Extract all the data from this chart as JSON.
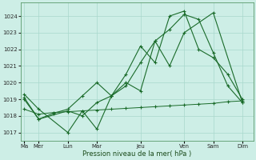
{
  "background_color": "#cdeee6",
  "grid_color": "#a8d8cc",
  "line_color": "#1a6b2a",
  "xlabel": "Pression niveau de la mer( hPa )",
  "ylim": [
    1016.5,
    1024.8
  ],
  "yticks": [
    1017,
    1018,
    1019,
    1020,
    1021,
    1022,
    1023,
    1024
  ],
  "x_labels": [
    "Ma",
    "Mer",
    "Lun",
    "Mar",
    "Jeu",
    "Ven",
    "Sam",
    "Dim"
  ],
  "x_positions": [
    0,
    2,
    6,
    10,
    16,
    22,
    26,
    30
  ],
  "xlim": [
    -0.5,
    31.5
  ],
  "series1": {
    "x": [
      0,
      2,
      4,
      6,
      8,
      10,
      12,
      14,
      16,
      18,
      20,
      22,
      24,
      26,
      28,
      30
    ],
    "y": [
      1018.4,
      1018.1,
      1018.2,
      1018.25,
      1018.3,
      1018.35,
      1018.4,
      1018.45,
      1018.5,
      1018.55,
      1018.6,
      1018.65,
      1018.7,
      1018.75,
      1018.85,
      1018.9
    ]
  },
  "series2": {
    "x": [
      0,
      2,
      6,
      8,
      10,
      12,
      14,
      16,
      18,
      20,
      22,
      26,
      30
    ],
    "y": [
      1019.3,
      1018.4,
      1017.0,
      1018.3,
      1017.2,
      1019.2,
      1020.0,
      1019.5,
      1022.5,
      1021.0,
      1023.0,
      1024.2,
      1018.8
    ]
  },
  "series3": {
    "x": [
      0,
      2,
      6,
      8,
      10,
      12,
      14,
      16,
      18,
      20,
      22,
      24,
      26,
      28,
      30
    ],
    "y": [
      1019.0,
      1017.8,
      1018.3,
      1018.0,
      1018.8,
      1019.2,
      1019.8,
      1021.2,
      1022.5,
      1023.2,
      1024.1,
      1023.8,
      1021.8,
      1019.8,
      1018.8
    ]
  },
  "series4": {
    "x": [
      0,
      2,
      4,
      6,
      8,
      10,
      12,
      14,
      16,
      18,
      20,
      22,
      24,
      26,
      28,
      30
    ],
    "y": [
      1019.1,
      1017.8,
      1018.15,
      1018.4,
      1019.2,
      1020.0,
      1019.2,
      1020.5,
      1022.2,
      1021.2,
      1024.0,
      1024.3,
      1022.0,
      1021.5,
      1020.5,
      1019.0
    ]
  }
}
